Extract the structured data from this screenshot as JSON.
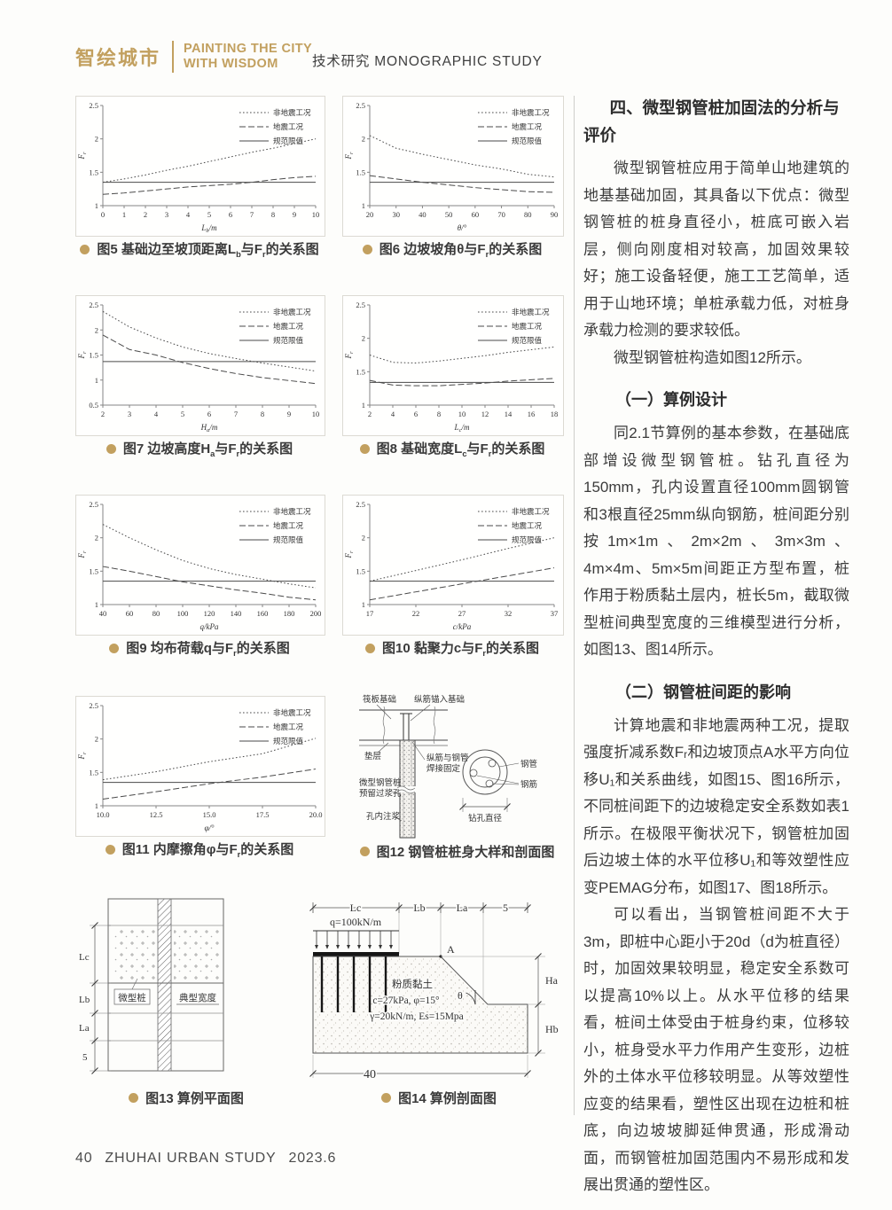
{
  "theme": {
    "gold": "#c2a05f",
    "ink": "#3b3b3b",
    "chart_line": "#4a4a4a",
    "box_border": "#dcdad3"
  },
  "header": {
    "logo_cn": "智绘城市",
    "logo_en_line1": "PAINTING THE CITY",
    "logo_en_line2": "WITH WISDOM",
    "section": "技术研究 MONOGRAPHIC STUDY"
  },
  "footer": {
    "page_number": "40",
    "journal": "ZHUHAI URBAN STUDY",
    "issue": "2023.6"
  },
  "article": {
    "blocks": [
      {
        "type": "h1",
        "text": "四、微型钢管桩加固法的分析与评价"
      },
      {
        "type": "p",
        "text": "微型钢管桩应用于简单山地建筑的地基基础加固，其具备以下优点：微型钢管桩的桩身直径小，桩底可嵌入岩层，侧向刚度相对较高，加固效果较好；施工设备轻便，施工工艺简单，适用于山地环境；单桩承载力低，对桩身承载力检测的要求较低。"
      },
      {
        "type": "p",
        "text": "微型钢管桩构造如图12所示。"
      },
      {
        "type": "h2",
        "text": "（一）算例设计"
      },
      {
        "type": "p",
        "text": "同2.1节算例的基本参数，在基础底部增设微型钢管桩。钻孔直径为150mm，孔内设置直径100mm圆钢管和3根直径25mm纵向钢筋，桩间距分别按1m×1m、2m×2m、3m×3m、4m×4m、5m×5m间距正方型布置，桩作用于粉质黏土层内，桩长5m，截取微型桩间典型宽度的三维模型进行分析，如图13、图14所示。"
      },
      {
        "type": "h2",
        "text": "（二）钢管桩间距的影响"
      },
      {
        "type": "p",
        "text": "计算地震和非地震两种工况，提取强度折减系数Fᵣ和边坡顶点A水平方向位移U₁和关系曲线，如图15、图16所示，不同桩间距下的边坡稳定安全系数如表1所示。在极限平衡状况下，钢管桩加固后边坡土体的水平位移U₁和等效塑性应变PEMAG分布，如图17、图18所示。"
      },
      {
        "type": "p",
        "text": "可以看出，当钢管桩间距不大于3m，即桩中心距小于20d（d为桩直径）时，加固效果较明显，稳定安全系数可以提高10%以上。从水平位移的结果看，桩间土体受由于桩身约束，位移较小，桩身受水平力作用产生变形，边桩外的土体水平位移较明显。从等效塑性应变的结果看，塑性区出现在边桩和桩底，向边坡坡脚延伸贯通，形成滑动面，而钢管桩加固范围内不易形成和发展出贯通的塑性区。"
      }
    ]
  },
  "captions": {
    "fig5": [
      {
        "t": "图5 基础边至坡顶距离L"
      },
      {
        "t": "b",
        "sub": true
      },
      {
        "t": "与F"
      },
      {
        "t": "r",
        "sub": true
      },
      {
        "t": "的关系图"
      }
    ],
    "fig6": [
      {
        "t": "图6 边坡坡角θ与F"
      },
      {
        "t": "r",
        "sub": true
      },
      {
        "t": "的关系图"
      }
    ],
    "fig7": [
      {
        "t": "图7 边坡高度H"
      },
      {
        "t": "a",
        "sub": true
      },
      {
        "t": "与F"
      },
      {
        "t": "r",
        "sub": true
      },
      {
        "t": "的关系图"
      }
    ],
    "fig8": [
      {
        "t": "图8 基础宽度L"
      },
      {
        "t": "c",
        "sub": true
      },
      {
        "t": "与F"
      },
      {
        "t": "r",
        "sub": true
      },
      {
        "t": "的关系图"
      }
    ],
    "fig9": [
      {
        "t": "图9 均布荷载q与F"
      },
      {
        "t": "r",
        "sub": true
      },
      {
        "t": "的关系图"
      }
    ],
    "fig10": [
      {
        "t": "图10 黏聚力c与F"
      },
      {
        "t": "r",
        "sub": true
      },
      {
        "t": "的关系图"
      }
    ],
    "fig11": [
      {
        "t": "图11 内摩擦角φ与F"
      },
      {
        "t": "r",
        "sub": true
      },
      {
        "t": "的关系图"
      }
    ],
    "fig12": [
      {
        "t": "图12 钢管桩桩身大样和剖面图"
      }
    ],
    "fig13": [
      {
        "t": "图13 算例平面图"
      }
    ],
    "fig14": [
      {
        "t": "图14 算例剖面图"
      }
    ]
  },
  "figure12": {
    "labels": {
      "raft": "筏板基础",
      "anchor": "纵筋锚入基础",
      "cushion": "垫层",
      "weld1": "纵筋与钢管",
      "weld2": "焊接固定",
      "pile1": "微型钢管桩",
      "pile2": "预留过浆孔",
      "grout": "孔内注浆",
      "pipe": "钢管",
      "rebar": "钢筋",
      "bore": "钻孔直径"
    }
  },
  "figure13": {
    "labels": {
      "micro": "微型桩",
      "typical": "典型宽度",
      "lc": "Lc",
      "lb": "Lb",
      "la": "La",
      "five": "5"
    }
  },
  "figure14": {
    "labels": {
      "q": "q=100kN/m",
      "a": "A",
      "soil": "粉质黏土",
      "theta": "θ",
      "cphi": "c=27kPa, φ=15°",
      "gamma": "γ=20kN/m, Es=15Mpa",
      "lc": "Lc",
      "lb": "Lb",
      "la": "La",
      "five": "5",
      "ha": "Ha",
      "hb": "Hb",
      "forty": "40"
    }
  },
  "chart_data": [
    {
      "id": "fig5",
      "type": "line",
      "title": "图5 基础边至坡顶距离Lb与Fr的关系图",
      "xlabel_parts": [
        {
          "t": "L"
        },
        {
          "t": "b",
          "sub": true
        },
        {
          "t": "/m"
        }
      ],
      "ylabel_parts": [
        {
          "t": "F"
        },
        {
          "t": "r",
          "sub": true
        }
      ],
      "xlim": [
        0,
        10
      ],
      "ylim": [
        1,
        2.5
      ],
      "xticks": [
        0,
        1,
        2,
        3,
        4,
        5,
        6,
        7,
        8,
        9,
        10
      ],
      "xtick_labels": [
        "0",
        "1",
        "2",
        "3",
        "4",
        "5",
        "6",
        "7",
        "8",
        "9",
        "10"
      ],
      "yticks": [
        1,
        1.5,
        2,
        2.5
      ],
      "ytick_labels": [
        "1",
        "1.5",
        "2",
        "2.5"
      ],
      "legend_position": "top-right",
      "grid": false,
      "series": [
        {
          "name": "非地震工况",
          "style": "dotted",
          "x": [
            0,
            1,
            2,
            3,
            4,
            5,
            6,
            7,
            8,
            9,
            10
          ],
          "y": [
            1.35,
            1.4,
            1.46,
            1.53,
            1.59,
            1.66,
            1.73,
            1.8,
            1.86,
            1.93,
            2.0
          ]
        },
        {
          "name": "地震工况",
          "style": "dashed",
          "x": [
            0,
            1,
            2,
            3,
            4,
            5,
            6,
            7,
            8,
            9,
            10
          ],
          "y": [
            1.17,
            1.19,
            1.22,
            1.25,
            1.28,
            1.3,
            1.32,
            1.35,
            1.39,
            1.42,
            1.44
          ]
        },
        {
          "name": "规范限值",
          "style": "solid",
          "x": [
            0,
            10
          ],
          "y": [
            1.35,
            1.35
          ]
        }
      ]
    },
    {
      "id": "fig6",
      "type": "line",
      "title": "图6 边坡坡角θ与Fr的关系图",
      "xlabel_parts": [
        {
          "t": "θ/°"
        }
      ],
      "ylabel_parts": [
        {
          "t": "F"
        },
        {
          "t": "r",
          "sub": true
        }
      ],
      "xlim": [
        20,
        90
      ],
      "ylim": [
        1,
        2.5
      ],
      "xticks": [
        20,
        30,
        40,
        50,
        60,
        70,
        80,
        90
      ],
      "xtick_labels": [
        "20",
        "30",
        "40",
        "50",
        "60",
        "70",
        "80",
        "90"
      ],
      "yticks": [
        1,
        1.5,
        2,
        2.5
      ],
      "ytick_labels": [
        "1",
        "1.5",
        "2",
        "2.5"
      ],
      "legend_position": "top-right",
      "grid": false,
      "series": [
        {
          "name": "非地震工况",
          "style": "dotted",
          "x": [
            20,
            30,
            40,
            50,
            60,
            70,
            80,
            90
          ],
          "y": [
            2.05,
            1.86,
            1.77,
            1.69,
            1.61,
            1.55,
            1.47,
            1.43
          ]
        },
        {
          "name": "地震工况",
          "style": "dashed",
          "x": [
            20,
            30,
            40,
            50,
            60,
            70,
            80,
            90
          ],
          "y": [
            1.45,
            1.4,
            1.35,
            1.31,
            1.27,
            1.24,
            1.21,
            1.2
          ]
        },
        {
          "name": "规范限值",
          "style": "solid",
          "x": [
            20,
            90
          ],
          "y": [
            1.35,
            1.35
          ]
        }
      ]
    },
    {
      "id": "fig7",
      "type": "line",
      "title": "图7 边坡高度Ha与Fr的关系图",
      "xlabel_parts": [
        {
          "t": "H"
        },
        {
          "t": "a",
          "sub": true
        },
        {
          "t": "/m"
        }
      ],
      "ylabel_parts": [
        {
          "t": "F"
        },
        {
          "t": "r",
          "sub": true
        }
      ],
      "xlim": [
        2,
        10
      ],
      "ylim": [
        0.5,
        2.5
      ],
      "xticks": [
        2,
        3,
        4,
        5,
        6,
        7,
        8,
        9,
        10
      ],
      "xtick_labels": [
        "2",
        "3",
        "4",
        "5",
        "6",
        "7",
        "8",
        "9",
        "10"
      ],
      "yticks": [
        0.5,
        1,
        1.5,
        2,
        2.5
      ],
      "ytick_labels": [
        "0.5",
        "1",
        "1.5",
        "2",
        "2.5"
      ],
      "legend_position": "top-right",
      "grid": false,
      "series": [
        {
          "name": "非地震工况",
          "style": "dotted",
          "x": [
            2,
            3,
            4,
            5,
            6,
            7,
            8,
            9,
            10
          ],
          "y": [
            2.37,
            2.06,
            1.84,
            1.66,
            1.53,
            1.43,
            1.34,
            1.26,
            1.18
          ]
        },
        {
          "name": "地震工况",
          "style": "dashed",
          "x": [
            2,
            3,
            4,
            5,
            6,
            7,
            8,
            9,
            10
          ],
          "y": [
            1.9,
            1.61,
            1.5,
            1.35,
            1.23,
            1.13,
            1.05,
            0.99,
            0.93
          ]
        },
        {
          "name": "规范限值",
          "style": "solid",
          "x": [
            2,
            10
          ],
          "y": [
            1.37,
            1.37
          ]
        }
      ]
    },
    {
      "id": "fig8",
      "type": "line",
      "title": "图8 基础宽度Lc与Fr的关系图",
      "xlabel_parts": [
        {
          "t": "L"
        },
        {
          "t": "c",
          "sub": true
        },
        {
          "t": "/m"
        }
      ],
      "ylabel_parts": [
        {
          "t": "F"
        },
        {
          "t": "r",
          "sub": true
        }
      ],
      "xlim": [
        2,
        18
      ],
      "ylim": [
        1,
        2.5
      ],
      "xticks": [
        2,
        4,
        6,
        8,
        10,
        12,
        14,
        16,
        18
      ],
      "xtick_labels": [
        "2",
        "4",
        "6",
        "8",
        "10",
        "12",
        "14",
        "16",
        "18"
      ],
      "yticks": [
        1,
        1.5,
        2,
        2.5
      ],
      "ytick_labels": [
        "1",
        "1.5",
        "2",
        "2.5"
      ],
      "legend_position": "top-right",
      "grid": false,
      "series": [
        {
          "name": "非地震工况",
          "style": "dotted",
          "x": [
            2,
            4,
            6,
            8,
            10,
            12,
            14,
            16,
            18
          ],
          "y": [
            1.75,
            1.64,
            1.63,
            1.66,
            1.7,
            1.74,
            1.79,
            1.83,
            1.87
          ]
        },
        {
          "name": "地震工况",
          "style": "dashed",
          "x": [
            2,
            4,
            6,
            8,
            10,
            12,
            14,
            16,
            18
          ],
          "y": [
            1.37,
            1.3,
            1.29,
            1.29,
            1.31,
            1.33,
            1.36,
            1.38,
            1.4
          ]
        },
        {
          "name": "规范限值",
          "style": "solid",
          "x": [
            2,
            18
          ],
          "y": [
            1.34,
            1.34
          ]
        }
      ]
    },
    {
      "id": "fig9",
      "type": "line",
      "title": "图9 均布荷载q与Fr的关系图",
      "xlabel_parts": [
        {
          "t": "q/kPa"
        }
      ],
      "ylabel_parts": [
        {
          "t": "F"
        },
        {
          "t": "r",
          "sub": true
        }
      ],
      "xlim": [
        40,
        200
      ],
      "ylim": [
        1,
        2.5
      ],
      "xticks": [
        40,
        60,
        80,
        100,
        120,
        140,
        160,
        180,
        200
      ],
      "xtick_labels": [
        "40",
        "60",
        "80",
        "100",
        "120",
        "140",
        "160",
        "180",
        "200"
      ],
      "yticks": [
        1,
        1.5,
        2,
        2.5
      ],
      "ytick_labels": [
        "1",
        "1.5",
        "2",
        "2.5"
      ],
      "legend_position": "top-right",
      "grid": false,
      "series": [
        {
          "name": "非地震工况",
          "style": "dotted",
          "x": [
            40,
            60,
            80,
            100,
            120,
            140,
            160,
            180,
            200
          ],
          "y": [
            2.2,
            2.0,
            1.82,
            1.66,
            1.54,
            1.45,
            1.38,
            1.31,
            1.25
          ]
        },
        {
          "name": "地震工况",
          "style": "dashed",
          "x": [
            40,
            60,
            80,
            100,
            120,
            140,
            160,
            180,
            200
          ],
          "y": [
            1.57,
            1.5,
            1.42,
            1.34,
            1.28,
            1.22,
            1.17,
            1.11,
            1.07
          ]
        },
        {
          "name": "规范限值",
          "style": "solid",
          "x": [
            40,
            200
          ],
          "y": [
            1.35,
            1.35
          ]
        }
      ]
    },
    {
      "id": "fig10",
      "type": "line",
      "title": "图10 黏聚力c与Fr的关系图",
      "xlabel_parts": [
        {
          "t": "c/kPa"
        }
      ],
      "ylabel_parts": [
        {
          "t": "F"
        },
        {
          "t": "r",
          "sub": true
        }
      ],
      "xlim": [
        17,
        37
      ],
      "ylim": [
        1,
        2.5
      ],
      "xticks": [
        17,
        22,
        27,
        32,
        37
      ],
      "xtick_labels": [
        "17",
        "22",
        "27",
        "32",
        "37"
      ],
      "yticks": [
        1,
        1.5,
        2,
        2.5
      ],
      "ytick_labels": [
        "1",
        "1.5",
        "2",
        "2.5"
      ],
      "legend_position": "top-right",
      "grid": false,
      "series": [
        {
          "name": "非地震工况",
          "style": "dotted",
          "x": [
            17,
            22,
            27,
            32,
            37
          ],
          "y": [
            1.35,
            1.51,
            1.67,
            1.84,
            2.0
          ]
        },
        {
          "name": "地震工况",
          "style": "dashed",
          "x": [
            17,
            22,
            27,
            32,
            37
          ],
          "y": [
            1.07,
            1.19,
            1.31,
            1.43,
            1.55
          ]
        },
        {
          "name": "规范限值",
          "style": "solid",
          "x": [
            17,
            37
          ],
          "y": [
            1.35,
            1.35
          ]
        }
      ]
    },
    {
      "id": "fig11",
      "type": "line",
      "title": "图11 内摩擦角φ与Fr的关系图",
      "xlabel_parts": [
        {
          "t": "φ/°"
        }
      ],
      "ylabel_parts": [
        {
          "t": "F"
        },
        {
          "t": "r",
          "sub": true
        }
      ],
      "xlim": [
        10,
        20
      ],
      "ylim": [
        1,
        2.5
      ],
      "xticks": [
        10,
        12.5,
        15,
        17.5,
        20
      ],
      "xtick_labels": [
        "10.0",
        "12.5",
        "15.0",
        "17.5",
        "20.0"
      ],
      "yticks": [
        1,
        1.5,
        2,
        2.5
      ],
      "ytick_labels": [
        "1",
        "1.5",
        "2",
        "2.5"
      ],
      "legend_position": "top-right",
      "grid": false,
      "series": [
        {
          "name": "非地震工况",
          "style": "dotted",
          "x": [
            10,
            12.5,
            15,
            17.5,
            20
          ],
          "y": [
            1.39,
            1.51,
            1.66,
            1.78,
            2.01
          ]
        },
        {
          "name": "地震工况",
          "style": "dashed",
          "x": [
            10,
            12.5,
            15,
            17.5,
            20
          ],
          "y": [
            1.1,
            1.21,
            1.33,
            1.43,
            1.55
          ]
        },
        {
          "name": "规范限值",
          "style": "solid",
          "x": [
            10,
            20
          ],
          "y": [
            1.35,
            1.35
          ]
        }
      ]
    }
  ]
}
